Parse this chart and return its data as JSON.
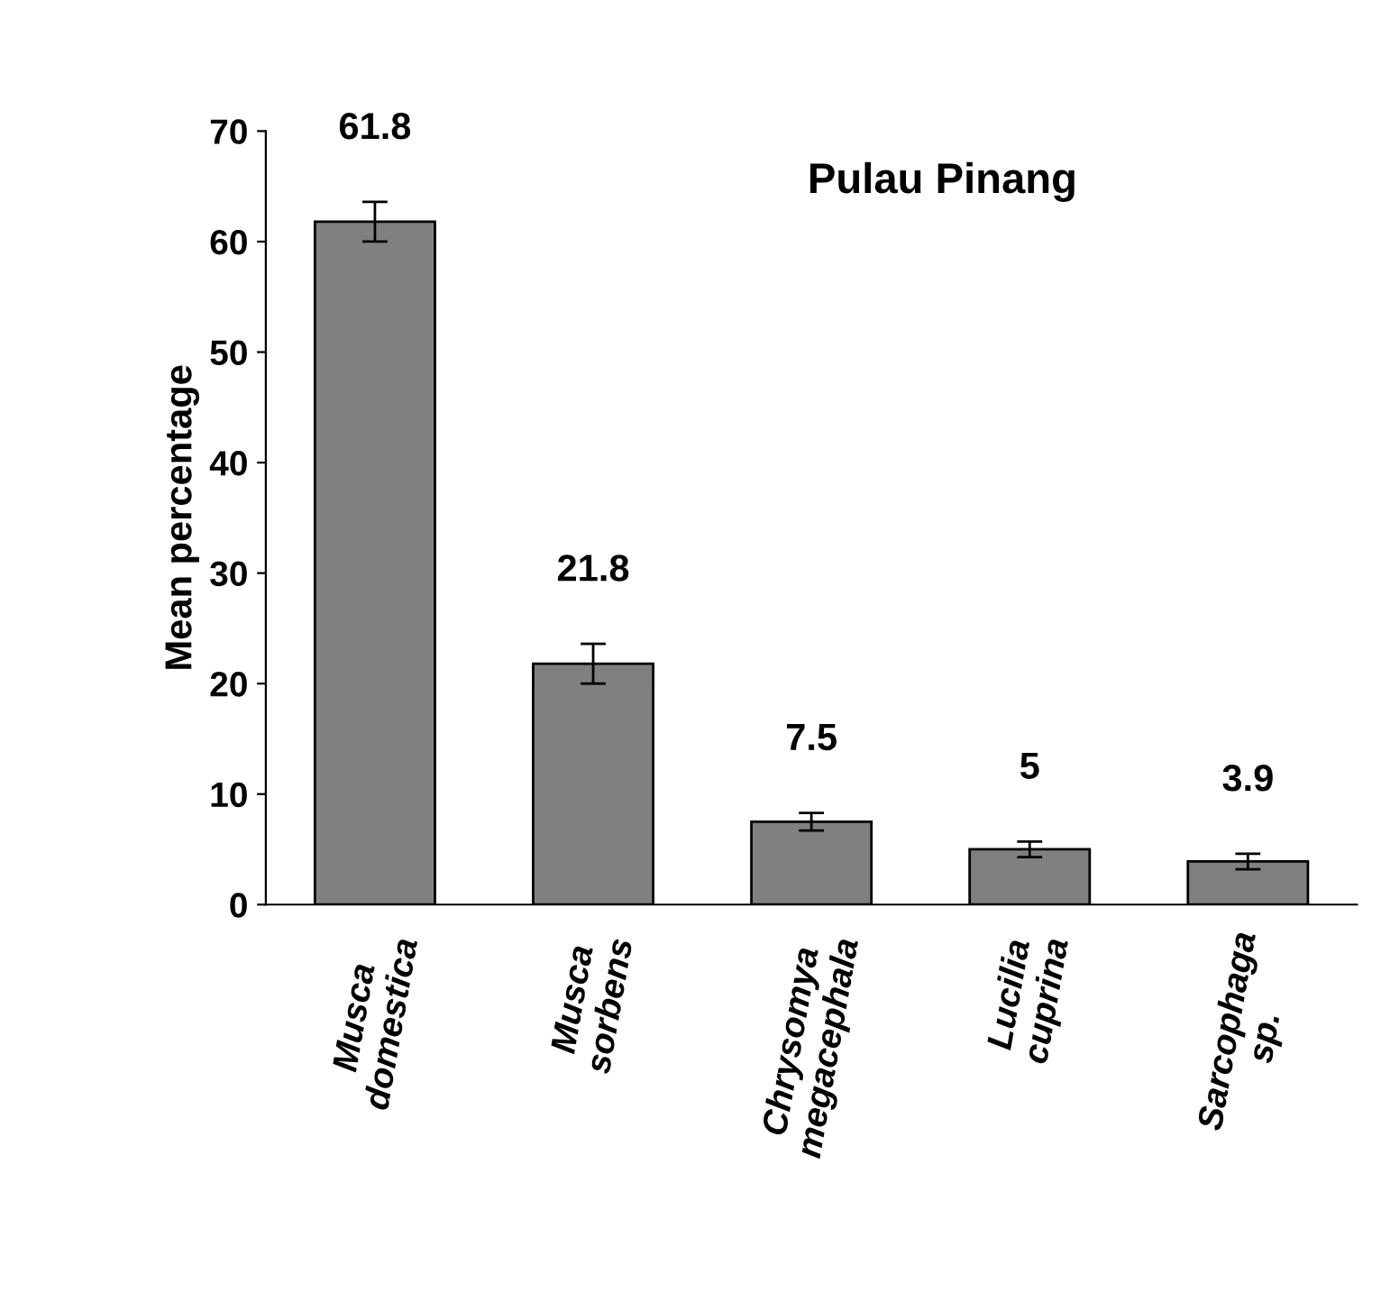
{
  "chart_data": {
    "type": "bar",
    "title": "Pulau Pinang",
    "ylabel": "Mean percentage",
    "categories": [
      "Musca\ndomestica",
      "Musca\nsorbens",
      "Chrysomya\nmegacephala",
      "Lucilia\ncuprina",
      "Sarcophaga\nsp."
    ],
    "values": [
      61.8,
      21.8,
      7.5,
      5,
      3.9
    ],
    "errors": [
      1.8,
      1.8,
      0.8,
      0.7,
      0.7
    ],
    "color": "#808080",
    "data_labels": true,
    "ylim": [
      0,
      70
    ],
    "yticks": [
      0,
      10,
      20,
      30,
      40,
      50,
      60,
      70
    ],
    "grid": false,
    "legend": false
  }
}
